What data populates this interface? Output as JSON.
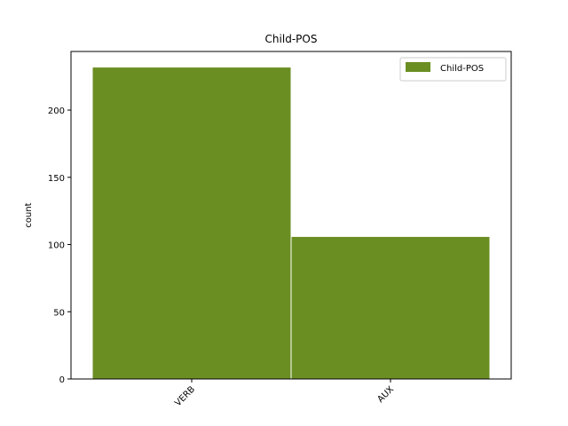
{
  "chart_data": {
    "type": "bar",
    "title": "Child-POS",
    "xlabel": "",
    "ylabel": "count",
    "categories": [
      "VERB",
      "AUX"
    ],
    "series": [
      {
        "name": "Child-POS",
        "values": [
          232,
          106
        ],
        "color": "#6b8e23"
      }
    ],
    "ylim": [
      0,
      243.6
    ],
    "yticks": [
      0,
      50,
      100,
      150,
      200
    ],
    "grid": false,
    "legend": "top-right"
  }
}
